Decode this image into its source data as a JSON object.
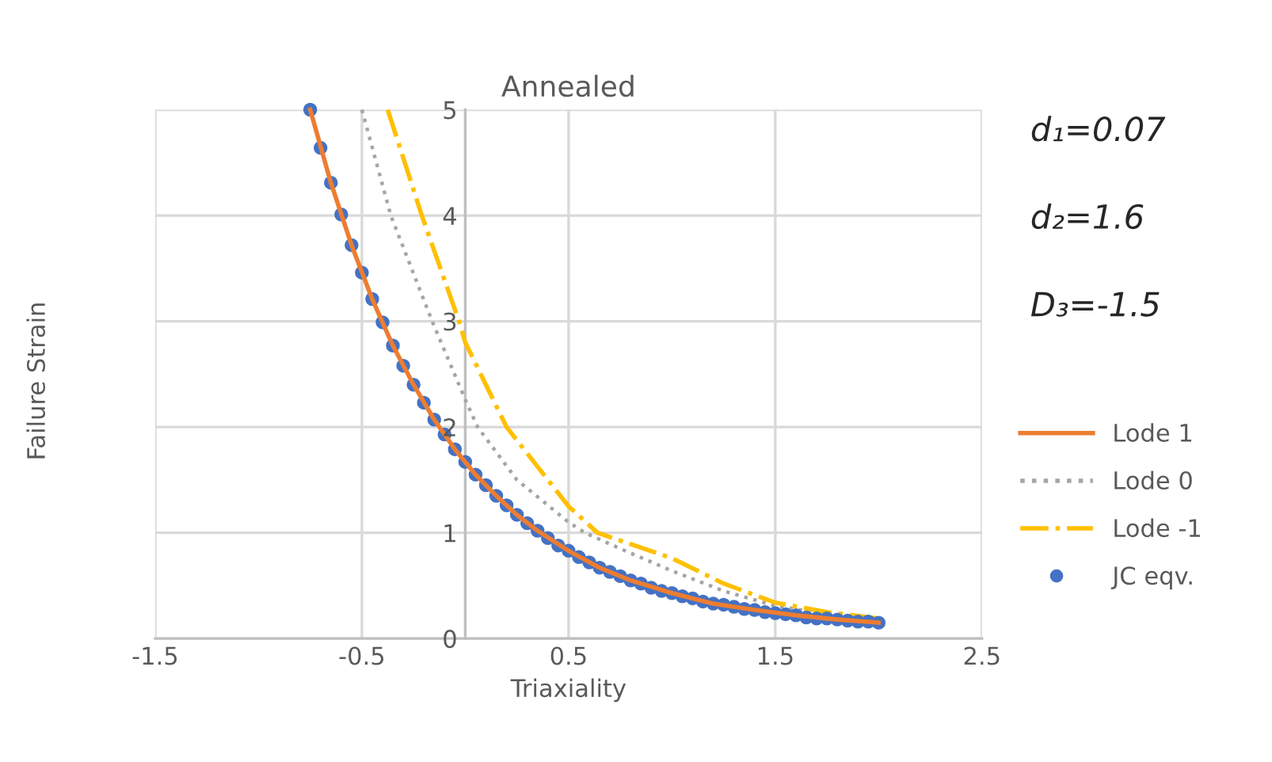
{
  "chart_data": {
    "type": "line",
    "title": "Annealed",
    "xlabel": "Triaxiality",
    "ylabel": "Failure Strain",
    "xlim": [
      -1.5,
      2.5
    ],
    "xticks": [
      -1.5,
      -0.5,
      0.5,
      1.5,
      2.5
    ],
    "ylim": [
      0,
      5
    ],
    "yticks": [
      0,
      1,
      2,
      3,
      4,
      5
    ],
    "grid": true,
    "legend": "right",
    "annotations": [
      "d₁=0.07",
      "d₂=1.6",
      "D₃=-1.5"
    ],
    "series": [
      {
        "name": "Lode 1",
        "color": "#ed7d31",
        "line_style": "solid",
        "x": [
          -0.75,
          -0.65,
          -0.55,
          -0.45,
          -0.35,
          -0.25,
          -0.15,
          -0.05,
          0.05,
          0.15,
          0.25,
          0.35,
          0.5,
          0.65,
          0.8,
          1.0,
          1.2,
          1.4,
          1.6,
          1.8,
          2.0
        ],
        "values": [
          5.0,
          4.31,
          3.72,
          3.21,
          2.77,
          2.4,
          2.07,
          1.79,
          1.55,
          1.35,
          1.17,
          1.02,
          0.83,
          0.67,
          0.55,
          0.43,
          0.33,
          0.27,
          0.22,
          0.18,
          0.15
        ]
      },
      {
        "name": "Lode 0",
        "color": "#a5a5a5",
        "line_style": "dotted",
        "x": [
          -0.5,
          -0.36,
          -0.16,
          0.0,
          0.06,
          0.25,
          0.5,
          0.58,
          0.75,
          1.0,
          1.25,
          1.5,
          1.75,
          2.0
        ],
        "values": [
          5.0,
          4.0,
          3.0,
          2.26,
          2.0,
          1.5,
          1.1,
          1.0,
          0.85,
          0.64,
          0.45,
          0.31,
          0.23,
          0.18
        ]
      },
      {
        "name": "Lode -1",
        "color": "#ffc000",
        "line_style": "dashdot",
        "x": [
          -0.375,
          -0.21,
          -0.03,
          0.0,
          0.2,
          0.4,
          0.5,
          0.64,
          1.0,
          1.25,
          1.5,
          1.75,
          2.0
        ],
        "values": [
          5.0,
          4.0,
          3.0,
          2.8,
          2.0,
          1.5,
          1.25,
          1.0,
          0.76,
          0.52,
          0.34,
          0.25,
          0.19
        ]
      },
      {
        "name": "JC eqv.",
        "color": "#4472c4",
        "type": "scatter",
        "marker": "circle",
        "x": [
          -0.75,
          -0.7,
          -0.65,
          -0.6,
          -0.55,
          -0.5,
          -0.45,
          -0.4,
          -0.35,
          -0.3,
          -0.25,
          -0.2,
          -0.15,
          -0.1,
          -0.05,
          0.0,
          0.05,
          0.1,
          0.15,
          0.2,
          0.25,
          0.3,
          0.35,
          0.4,
          0.45,
          0.5,
          0.55,
          0.6,
          0.65,
          0.7,
          0.75,
          0.8,
          0.85,
          0.9,
          0.95,
          1.0,
          1.05,
          1.1,
          1.15,
          1.2,
          1.25,
          1.3,
          1.35,
          1.4,
          1.45,
          1.5,
          1.55,
          1.6,
          1.65,
          1.7,
          1.75,
          1.8,
          1.85,
          1.9,
          1.95,
          2.0
        ],
        "values": [
          5.0,
          4.64,
          4.31,
          4.01,
          3.72,
          3.46,
          3.21,
          2.99,
          2.77,
          2.58,
          2.4,
          2.23,
          2.07,
          1.93,
          1.79,
          1.67,
          1.55,
          1.45,
          1.35,
          1.26,
          1.17,
          1.09,
          1.02,
          0.95,
          0.88,
          0.83,
          0.77,
          0.72,
          0.67,
          0.63,
          0.59,
          0.55,
          0.52,
          0.48,
          0.45,
          0.43,
          0.4,
          0.38,
          0.35,
          0.33,
          0.32,
          0.3,
          0.28,
          0.27,
          0.25,
          0.24,
          0.23,
          0.22,
          0.2,
          0.19,
          0.19,
          0.18,
          0.17,
          0.16,
          0.16,
          0.15
        ]
      }
    ]
  }
}
